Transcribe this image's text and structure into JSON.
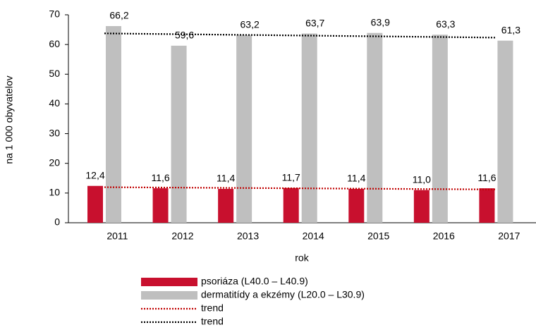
{
  "chart_data": {
    "type": "bar",
    "categories": [
      "2011",
      "2012",
      "2013",
      "2014",
      "2015",
      "2016",
      "2017"
    ],
    "x_label": "rok",
    "y_label": "na 1 000 obyvatelov",
    "ylim": [
      0,
      70
    ],
    "yticks": [
      0,
      10,
      20,
      30,
      40,
      50,
      60,
      70
    ],
    "series": [
      {
        "name": "psoriáza (L40.0 – L40.9)",
        "type": "bar",
        "color": "#c8102e",
        "values": [
          12.4,
          11.6,
          11.4,
          11.7,
          11.4,
          11.0,
          11.6
        ],
        "value_labels": [
          "12,4",
          "11,6",
          "11,4",
          "11,7",
          "11,4",
          "11,0",
          "11,6"
        ]
      },
      {
        "name": "dermatitídy a ekzémy (L20.0 – L30.9)",
        "type": "bar",
        "color": "#bfbfbf",
        "values": [
          66.2,
          59.6,
          63.2,
          63.7,
          63.9,
          63.3,
          61.3
        ],
        "value_labels": [
          "66,2",
          "59,6",
          "63,2",
          "63,7",
          "63,9",
          "63,3",
          "61,3"
        ]
      },
      {
        "name": "trend",
        "type": "trend",
        "color": "#c00000",
        "values": [
          11.97,
          11.84,
          11.71,
          11.59,
          11.46,
          11.33,
          11.2
        ]
      },
      {
        "name": "trend",
        "type": "trend",
        "color": "#000000",
        "values": [
          63.74,
          63.5,
          63.26,
          63.03,
          62.79,
          62.56,
          62.32
        ]
      }
    ],
    "legend": "bottom"
  }
}
